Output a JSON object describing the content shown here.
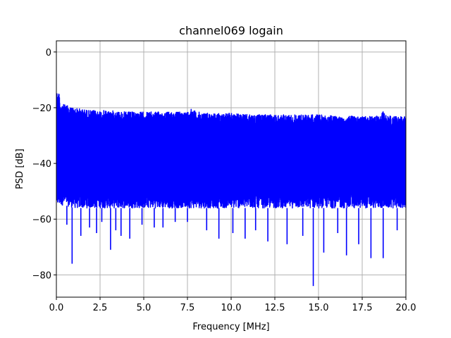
{
  "chart_data": {
    "type": "line",
    "title": "channel069 logain",
    "xlabel": "Frequency [MHz]",
    "ylabel": "PSD [dB]",
    "xlim": [
      0,
      20
    ],
    "ylim": [
      -88,
      4
    ],
    "grid": true,
    "line_color": "#0000ff",
    "x_ticks": [
      0,
      2.5,
      5,
      7.5,
      10,
      12.5,
      15,
      17.5,
      20
    ],
    "x_tick_labels": [
      "0.0",
      "2.5",
      "5.0",
      "7.5",
      "10.0",
      "12.5",
      "15.0",
      "17.5",
      "20.0"
    ],
    "y_ticks": [
      0,
      -20,
      -40,
      -60,
      -80
    ],
    "y_tick_labels": [
      "0",
      "−20",
      "−40",
      "−60",
      "−80"
    ],
    "series": [
      {
        "upper_envelope": {
          "x": [
            0,
            0.05,
            0.1,
            0.15,
            0.2,
            0.3,
            0.5,
            1,
            1.5,
            2,
            2.5,
            3,
            4,
            5,
            6,
            7,
            7.5,
            7.7,
            8,
            9,
            10,
            11,
            12,
            13,
            14,
            15,
            16,
            17,
            18,
            18.5,
            18.7,
            19,
            20
          ],
          "y": [
            -15,
            -14,
            -16,
            -13,
            -18,
            -18.5,
            -19,
            -20,
            -20.5,
            -21,
            -21,
            -21,
            -21.5,
            -21.5,
            -21.5,
            -21.5,
            -21.5,
            -20,
            -21.5,
            -22,
            -22,
            -22.5,
            -22.5,
            -22.5,
            -22.5,
            -22.5,
            -23,
            -23,
            -23,
            -23,
            -21,
            -23,
            -23
          ]
        },
        "lower_envelope": {
          "x": [
            0,
            0.5,
            1,
            1.5,
            2,
            3,
            4,
            5,
            6,
            7,
            8,
            9,
            10,
            11,
            12,
            13,
            14,
            15,
            16,
            17,
            18,
            19,
            20
          ],
          "y": [
            -55,
            -55,
            -56,
            -56,
            -56,
            -56,
            -56,
            -56,
            -56,
            -56,
            -56,
            -56,
            -56,
            -56,
            -56,
            -56,
            -56,
            -56,
            -56,
            -56,
            -56,
            -56,
            -56
          ]
        },
        "dips": {
          "x": [
            0.6,
            0.9,
            1.4,
            1.9,
            2.3,
            2.6,
            3.1,
            3.4,
            3.7,
            4.2,
            4.9,
            5.6,
            6.1,
            6.8,
            7.5,
            8.6,
            9.3,
            10.1,
            10.8,
            11.4,
            12.1,
            13.2,
            14.1,
            14.7,
            15.3,
            16.1,
            16.6,
            17.3,
            18.0,
            18.7,
            19.5
          ],
          "y": [
            -62,
            -76,
            -66,
            -63,
            -65,
            -61,
            -71,
            -64,
            -66,
            -67,
            -62,
            -63,
            -63,
            -61,
            -61,
            -64,
            -67,
            -65,
            -67,
            -64,
            -68,
            -69,
            -66,
            -84,
            -72,
            -65,
            -73,
            -69,
            -74,
            -74,
            -64
          ]
        }
      }
    ]
  }
}
